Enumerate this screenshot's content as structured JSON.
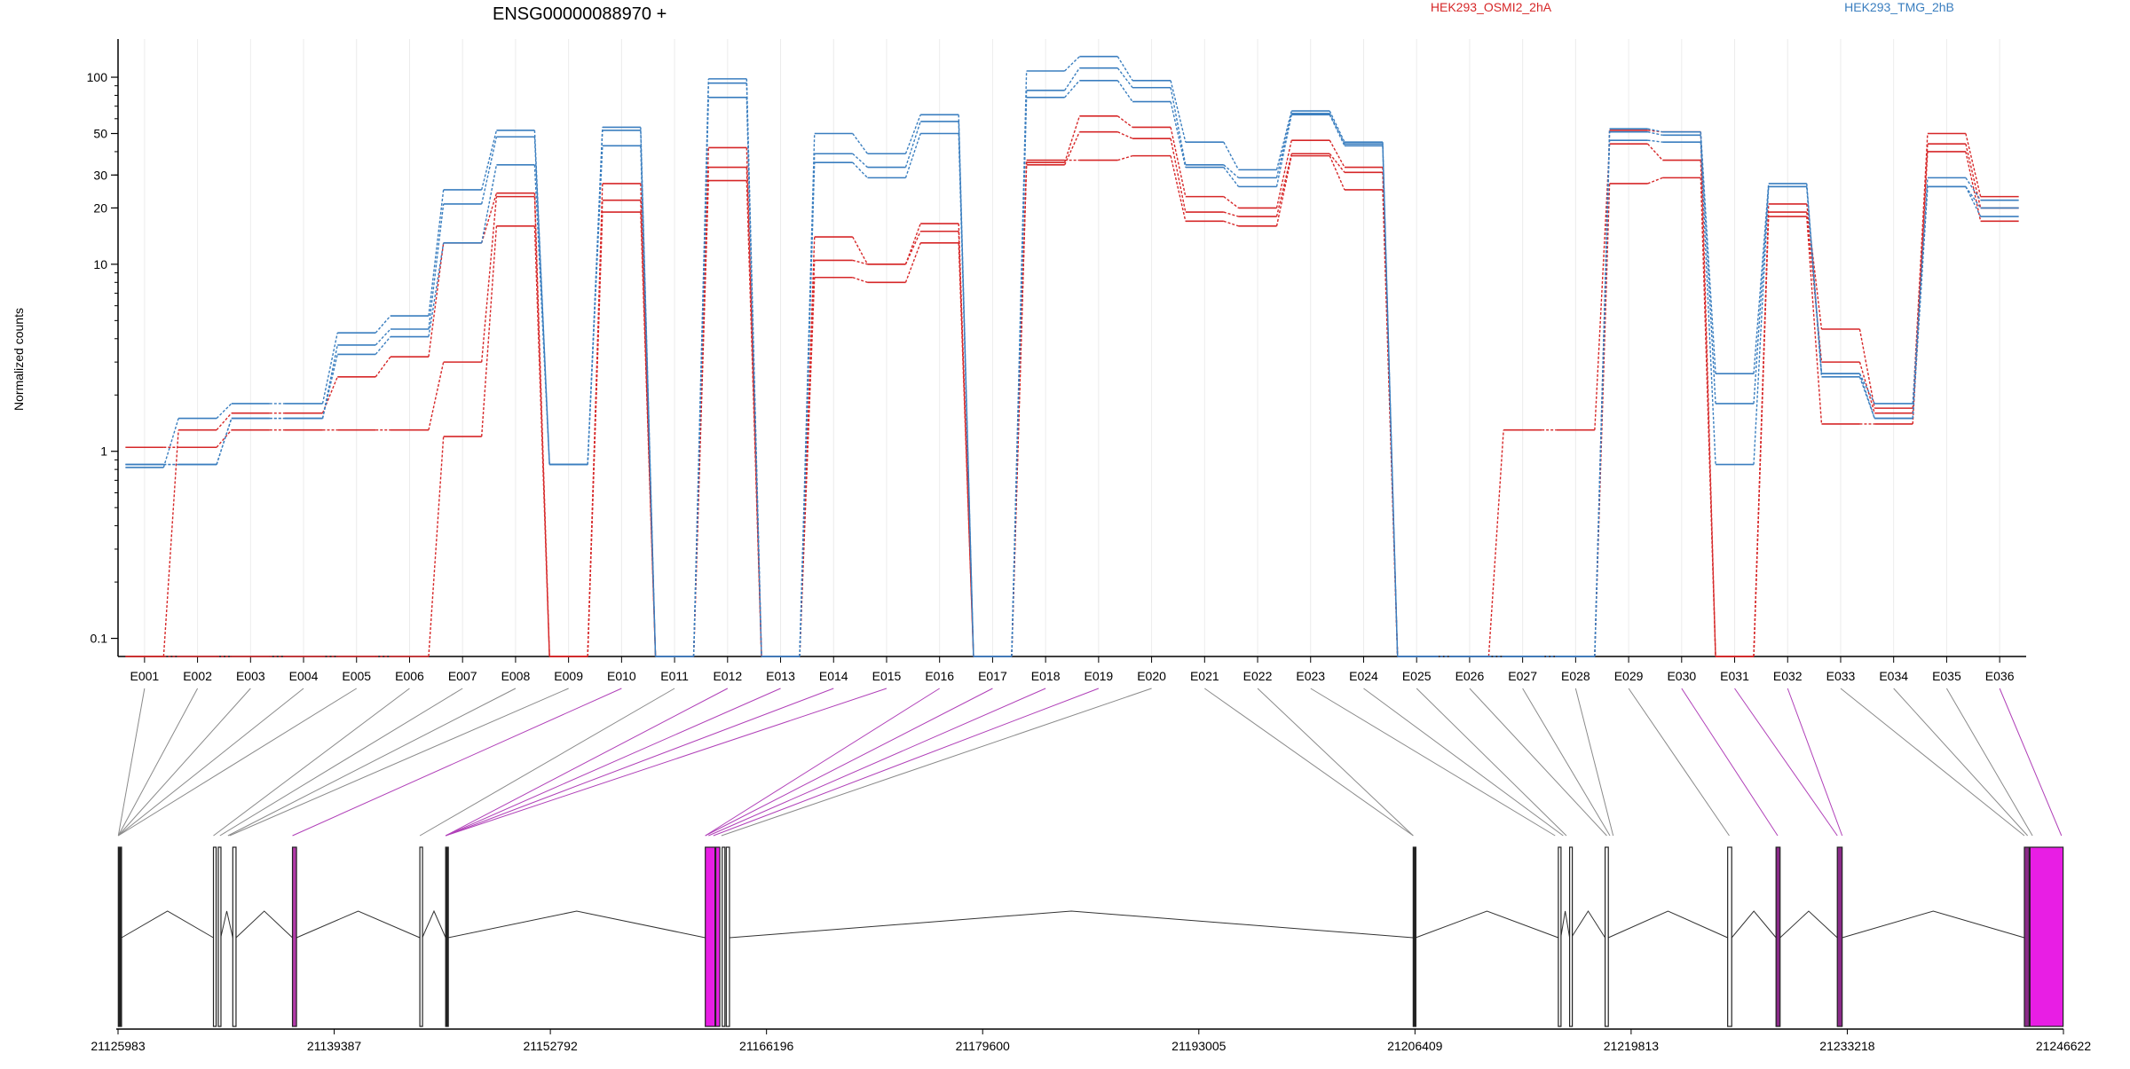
{
  "chart_data": {
    "type": "line",
    "title": "ENSG00000088970 +",
    "ylabel": "Normalized counts",
    "xlabel": "",
    "y_scale": "log",
    "ylim": [
      0.08,
      160
    ],
    "y_ticks": [
      {
        "value": 0.1,
        "label": "0.1"
      },
      {
        "value": 1,
        "label": "1"
      },
      {
        "value": 10,
        "label": "10"
      },
      {
        "value": 20,
        "label": "20"
      },
      {
        "value": 30,
        "label": "30"
      },
      {
        "value": 50,
        "label": "50"
      },
      {
        "value": 100,
        "label": "100"
      }
    ],
    "categories": [
      "E001",
      "E002",
      "E003",
      "E004",
      "E005",
      "E006",
      "E007",
      "E008",
      "E009",
      "E010",
      "E011",
      "E012",
      "E013",
      "E014",
      "E015",
      "E016",
      "E017",
      "E018",
      "E019",
      "E020",
      "E021",
      "E022",
      "E023",
      "E024",
      "E025",
      "E026",
      "E027",
      "E028",
      "E029",
      "E030",
      "E031",
      "E032",
      "E033",
      "E034",
      "E035",
      "E036"
    ],
    "legend": [
      {
        "name": "HEK293_OSMI2_2hA",
        "color": "#d62728"
      },
      {
        "name": "HEK293_TMG_2hB",
        "color": "#3a7ebf"
      }
    ],
    "series": [
      {
        "group": "HEK293_OSMI2_2hA",
        "color": "#d62728",
        "values": [
          0.08,
          0.08,
          0.08,
          0.08,
          0.08,
          0.08,
          1.2,
          16,
          0.08,
          19,
          0.08,
          28,
          0.08,
          8.5,
          8,
          13,
          0.08,
          36,
          36,
          38,
          17,
          16,
          38,
          25,
          0.08,
          0.08,
          0.08,
          0.08,
          27,
          29,
          0.08,
          18,
          1.4,
          1.4,
          40,
          17
        ]
      },
      {
        "group": "HEK293_OSMI2_2hA",
        "color": "#d62728",
        "values": [
          1.05,
          1.05,
          1.3,
          1.3,
          1.3,
          1.3,
          3,
          23,
          0.08,
          22,
          0.08,
          33,
          0.08,
          10.5,
          10,
          15,
          0.08,
          34,
          51,
          47,
          19,
          18,
          39,
          31,
          0.08,
          0.08,
          1.3,
          1.3,
          44,
          36,
          0.08,
          19,
          3,
          1.6,
          44,
          20
        ]
      },
      {
        "group": "HEK293_OSMI2_2hA",
        "color": "#d62728",
        "values": [
          0.08,
          1.3,
          1.6,
          1.6,
          2.5,
          3.2,
          13,
          24,
          0.08,
          27,
          0.08,
          42,
          0.08,
          14,
          10,
          16.5,
          0.08,
          35,
          62,
          54,
          23,
          20,
          46,
          33,
          0.08,
          0.08,
          0.08,
          0.08,
          52,
          51,
          0.08,
          21,
          4.5,
          1.7,
          50,
          23
        ]
      },
      {
        "group": "HEK293_TMG_2hB",
        "color": "#3a7ebf",
        "values": [
          0.85,
          0.85,
          1.5,
          1.5,
          3.3,
          4.1,
          13,
          34,
          0.85,
          43,
          0.08,
          78,
          0.08,
          35,
          29,
          50,
          0.08,
          78,
          96,
          74,
          33,
          26,
          63,
          43,
          0.08,
          0.08,
          0.08,
          0.08,
          46,
          45,
          0.85,
          26,
          2.6,
          1.5,
          26,
          18
        ]
      },
      {
        "group": "HEK293_TMG_2hB",
        "color": "#3a7ebf",
        "values": [
          0.85,
          0.85,
          1.5,
          1.5,
          3.7,
          4.5,
          21,
          48,
          0.85,
          52,
          0.08,
          93,
          0.08,
          39,
          33,
          58,
          0.08,
          85,
          112,
          88,
          34,
          29,
          64,
          44,
          0.08,
          0.08,
          0.08,
          0.08,
          51,
          49,
          1.8,
          26,
          2.5,
          1.5,
          26,
          20
        ]
      },
      {
        "group": "HEK293_TMG_2hB",
        "color": "#3a7ebf",
        "values": [
          0.82,
          1.5,
          1.8,
          1.8,
          4.3,
          5.3,
          25,
          52,
          0.85,
          54,
          0.08,
          98,
          0.08,
          50,
          39,
          63,
          0.08,
          108,
          129,
          96,
          45,
          32,
          66,
          45,
          0.08,
          0.08,
          0.08,
          0.08,
          53,
          51,
          2.6,
          27,
          2.6,
          1.8,
          29,
          22
        ]
      }
    ],
    "gene_model": {
      "x_ticks": [
        "21125983",
        "21139387",
        "21152792",
        "21166196",
        "21179600",
        "21193005",
        "21206409",
        "21219813",
        "21233218",
        "21246622"
      ],
      "x_range": [
        21125983,
        21246622
      ],
      "exons": [
        {
          "start": 21126000,
          "end": 21126200,
          "color": "#222222"
        },
        {
          "start": 21131900,
          "end": 21132050,
          "color": "#ffffff"
        },
        {
          "start": 21132200,
          "end": 21132350,
          "color": "#ffffff"
        },
        {
          "start": 21133100,
          "end": 21133300,
          "color": "#ffffff"
        },
        {
          "start": 21136800,
          "end": 21137050,
          "color": "#b23aa8"
        },
        {
          "start": 21144700,
          "end": 21144850,
          "color": "#ffffff"
        },
        {
          "start": 21146300,
          "end": 21146450,
          "color": "#222222"
        },
        {
          "start": 21162400,
          "end": 21163000,
          "color": "#e81ee4"
        },
        {
          "start": 21163050,
          "end": 21163300,
          "color": "#e81ee4"
        },
        {
          "start": 21163450,
          "end": 21163600,
          "color": "#ffffff"
        },
        {
          "start": 21163700,
          "end": 21163900,
          "color": "#ffffff"
        },
        {
          "start": 21206300,
          "end": 21206450,
          "color": "#222222"
        },
        {
          "start": 21215300,
          "end": 21215450,
          "color": "#ffffff"
        },
        {
          "start": 21216000,
          "end": 21216100,
          "color": "#ffffff"
        },
        {
          "start": 21218200,
          "end": 21218400,
          "color": "#ffffff"
        },
        {
          "start": 21225800,
          "end": 21226050,
          "color": "#ffffff"
        },
        {
          "start": 21228800,
          "end": 21229050,
          "color": "#8a2a88"
        },
        {
          "start": 21232600,
          "end": 21232900,
          "color": "#8a2a88"
        },
        {
          "start": 21244200,
          "end": 21244500,
          "color": "#8a2a88"
        },
        {
          "start": 21244550,
          "end": 21246600,
          "color": "#e81ee4"
        }
      ],
      "bin_anchors": [
        21126000,
        21126000,
        21126000,
        21126000,
        21126000,
        21131900,
        21132300,
        21132800,
        21132900,
        21136800,
        21144700,
        21146300,
        21146300,
        21146300,
        21146300,
        21162400,
        21162400,
        21162600,
        21162900,
        21163400,
        21206300,
        21206300,
        21215100,
        21215600,
        21215800,
        21218300,
        21218500,
        21218700,
        21225900,
        21228900,
        21232600,
        21232900,
        21244200,
        21244400,
        21244700,
        21246500
      ],
      "bin_anchor_highlight": [
        false,
        false,
        false,
        false,
        false,
        false,
        false,
        false,
        false,
        true,
        false,
        true,
        true,
        true,
        true,
        true,
        true,
        true,
        true,
        false,
        false,
        false,
        false,
        false,
        false,
        false,
        false,
        false,
        false,
        true,
        true,
        true,
        false,
        false,
        false,
        true
      ]
    }
  }
}
